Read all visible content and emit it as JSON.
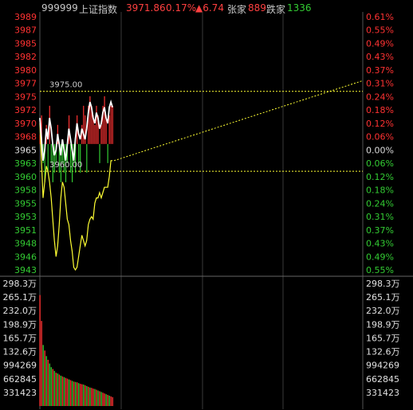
{
  "header": {
    "code": "999999",
    "name": "上证指数",
    "price": "3971.86",
    "pct": "0.17%",
    "change": "▲6.74",
    "up_label": "张家",
    "up_count": "889",
    "down_label": "跌家",
    "down_count": "1336"
  },
  "colors": {
    "up": "#ff3232",
    "down": "#33cc33",
    "neutral": "#dddddd",
    "price_line": "#ffffff",
    "avg_line": "#ffff33",
    "grid": "#3a3a3a",
    "dotted": "#ffff33",
    "volume_up": "#ff3232",
    "volume_down": "#33cc33"
  },
  "chart_data": {
    "type": "line",
    "title": "",
    "price_axis": {
      "left_labels": [
        "3989",
        "3987",
        "3985",
        "3982",
        "3980",
        "3977",
        "3975",
        "3972",
        "3970",
        "3968",
        "3965",
        "3963",
        "3960",
        "3958",
        "3955",
        "3953",
        "3951",
        "3948",
        "3946",
        "3943"
      ],
      "right_labels": [
        "0.61%",
        "0.55%",
        "0.49%",
        "0.43%",
        "0.37%",
        "0.31%",
        "0.24%",
        "0.18%",
        "0.12%",
        "0.06%",
        "0.00%",
        "0.06%",
        "0.12%",
        "0.18%",
        "0.24%",
        "0.31%",
        "0.37%",
        "0.43%",
        "0.49%",
        "0.55%"
      ],
      "min": 3941.5,
      "max": 3989
    },
    "reference_prev_close": 3965.12,
    "annotations": [
      {
        "text": "3975.00",
        "value": 3975.0
      },
      {
        "text": "3960.00",
        "value": 3960.0
      }
    ],
    "projection_line": {
      "from": {
        "t": 92,
        "value": 3962
      },
      "to": {
        "t": 400,
        "value": 3977
      }
    },
    "x_max": 400,
    "price_series": {
      "name": "",
      "points": [
        [
          0,
          3970
        ],
        [
          2,
          3966
        ],
        [
          4,
          3962
        ],
        [
          6,
          3964
        ],
        [
          8,
          3968
        ],
        [
          10,
          3966
        ],
        [
          12,
          3970
        ],
        [
          14,
          3968
        ],
        [
          16,
          3965
        ],
        [
          18,
          3963
        ],
        [
          20,
          3964
        ],
        [
          22,
          3967
        ],
        [
          24,
          3965
        ],
        [
          26,
          3963
        ],
        [
          28,
          3966
        ],
        [
          30,
          3964
        ],
        [
          32,
          3962
        ],
        [
          34,
          3965
        ],
        [
          36,
          3968
        ],
        [
          38,
          3966
        ],
        [
          40,
          3964
        ],
        [
          42,
          3962
        ],
        [
          44,
          3966
        ],
        [
          46,
          3969
        ],
        [
          48,
          3967
        ],
        [
          50,
          3966
        ],
        [
          52,
          3968
        ],
        [
          54,
          3967
        ],
        [
          56,
          3966
        ],
        [
          58,
          3968
        ],
        [
          60,
          3971
        ],
        [
          62,
          3973
        ],
        [
          64,
          3972
        ],
        [
          66,
          3970
        ],
        [
          68,
          3969
        ],
        [
          70,
          3971
        ],
        [
          72,
          3970
        ],
        [
          74,
          3968
        ],
        [
          76,
          3969
        ],
        [
          78,
          3971
        ],
        [
          80,
          3972
        ],
        [
          82,
          3970
        ],
        [
          84,
          3969
        ],
        [
          86,
          3972
        ],
        [
          88,
          3973
        ],
        [
          90,
          3972
        ]
      ]
    },
    "avg_series": {
      "name": "",
      "points": [
        [
          0,
          3969
        ],
        [
          2,
          3962
        ],
        [
          4,
          3955
        ],
        [
          6,
          3958
        ],
        [
          8,
          3961
        ],
        [
          10,
          3960
        ],
        [
          12,
          3958
        ],
        [
          14,
          3955
        ],
        [
          16,
          3951
        ],
        [
          18,
          3947
        ],
        [
          20,
          3944
        ],
        [
          22,
          3946
        ],
        [
          24,
          3950
        ],
        [
          26,
          3955
        ],
        [
          28,
          3958
        ],
        [
          30,
          3957
        ],
        [
          32,
          3954
        ],
        [
          34,
          3951
        ],
        [
          36,
          3950
        ],
        [
          38,
          3947
        ],
        [
          40,
          3945
        ],
        [
          42,
          3942
        ],
        [
          44,
          3941.5
        ],
        [
          46,
          3942
        ],
        [
          48,
          3944
        ],
        [
          50,
          3946
        ],
        [
          52,
          3948
        ],
        [
          54,
          3947
        ],
        [
          56,
          3946
        ],
        [
          58,
          3947
        ],
        [
          60,
          3950
        ],
        [
          62,
          3951
        ],
        [
          64,
          3951.5
        ],
        [
          66,
          3951
        ],
        [
          68,
          3954
        ],
        [
          70,
          3955
        ],
        [
          72,
          3955
        ],
        [
          74,
          3956
        ],
        [
          76,
          3955
        ],
        [
          78,
          3956
        ],
        [
          80,
          3957
        ],
        [
          82,
          3957
        ],
        [
          84,
          3957
        ],
        [
          86,
          3959
        ],
        [
          88,
          3962
        ],
        [
          90,
          3962
        ]
      ]
    },
    "tick_bars": {
      "name": "",
      "values": [
        1,
        3,
        -2,
        -4,
        2,
        -3,
        4,
        -2,
        -4,
        -3,
        -2,
        2,
        -3,
        -4,
        -2,
        -3,
        -4,
        -2,
        3,
        -3,
        -4,
        -2,
        -3,
        3,
        -2,
        -3,
        2,
        4,
        3,
        -3,
        4,
        5,
        4,
        3,
        2,
        4,
        3,
        -2,
        2,
        4,
        5,
        3,
        -2,
        3,
        4,
        4
      ]
    },
    "volume_axis": {
      "left_labels": [
        "298.3万",
        "265.1万",
        "232.0万",
        "198.9万",
        "165.7万",
        "132.6万",
        "994269",
        "662845",
        "331423"
      ],
      "right_labels": [
        "298.3万",
        "265.1万",
        "232.0万",
        "198.9万",
        "165.7万",
        "132.6万",
        "994269",
        "662845",
        "331423"
      ],
      "max": 3314230
    },
    "volume_series": {
      "name": "",
      "values": [
        3000000,
        2300000,
        1650000,
        1500000,
        1350000,
        1250000,
        1150000,
        1050000,
        1000000,
        950000,
        900000,
        880000,
        850000,
        820000,
        800000,
        780000,
        760000,
        740000,
        720000,
        700000,
        680000,
        660000,
        650000,
        640000,
        620000,
        600000,
        590000,
        580000,
        560000,
        540000,
        520000,
        500000,
        490000,
        470000,
        460000,
        440000,
        420000,
        400000,
        380000,
        360000,
        340000,
        320000,
        300000,
        280000,
        260000,
        240000
      ],
      "directions": [
        1,
        1,
        -1,
        1,
        -1,
        1,
        -1,
        -1,
        1,
        -1,
        1,
        -1,
        1,
        -1,
        1,
        -1,
        1,
        1,
        -1,
        1,
        -1,
        1,
        -1,
        1,
        -1,
        1,
        1,
        -1,
        1,
        -1,
        1,
        -1,
        1,
        1,
        -1,
        1,
        -1,
        1,
        -1,
        1,
        1,
        -1,
        1,
        -1,
        1,
        1
      ]
    }
  }
}
